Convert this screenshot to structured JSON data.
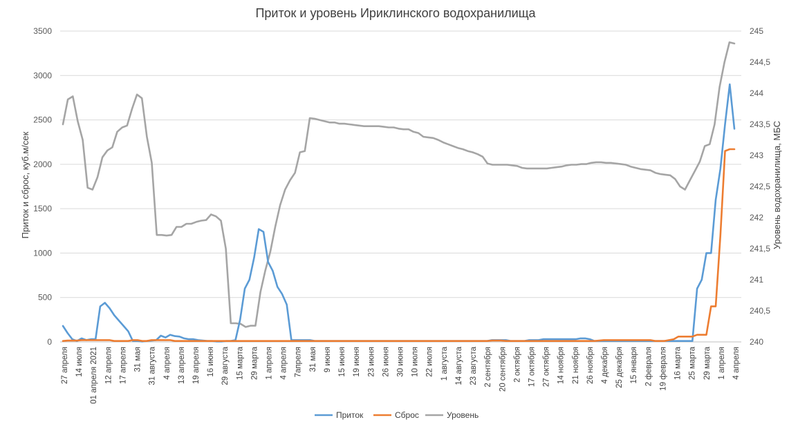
{
  "chart_data": {
    "type": "line",
    "title": "Приток и уровень Ириклинского водохранилища",
    "ylabel_left": "Приток и сброс, куб.м/сек",
    "ylabel_right": "Уровень водохранилища, МБС",
    "ylim_left": [
      0,
      3500
    ],
    "ylim_right": [
      240,
      245
    ],
    "yticks_left": [
      "0",
      "500",
      "1000",
      "1500",
      "2000",
      "2500",
      "3000",
      "3500"
    ],
    "yticks_right": [
      "240",
      "240,5",
      "241",
      "241,5",
      "242",
      "242,5",
      "243",
      "243,5",
      "244",
      "244,5",
      "245"
    ],
    "grid": "horizontal",
    "legend_position": "bottom",
    "x_labels": [
      "27 апреля",
      "14 июля",
      "01 апреля 2021",
      "12 апреля",
      "17 апреля",
      "31 мая",
      "31 августа",
      "4 апреля",
      "13 апреля",
      "19 апреля",
      "16 июня",
      "29 августа",
      "15 марта",
      "29 марта",
      "1 апреля",
      "4 апреля",
      "7апреля",
      "31 мая",
      "9 июня",
      "15 июня",
      "19 июня",
      "23 июня",
      "26 июня",
      "30 июня",
      "10 июля",
      "22 июля",
      "1 августа",
      "14 августа",
      "23 августа",
      "2 сентября",
      "20 сентября",
      "2 октября",
      "17 октября",
      "27 октября",
      "14 ноября",
      "21 ноября",
      "26 ноября",
      "4 декабря",
      "25 декабря",
      "15 января",
      "2 февраля",
      "19 февраля",
      "16 марта",
      "25 марта",
      "29 марта",
      "1 апреля",
      "4 апреля"
    ],
    "series": [
      {
        "name": "Приток",
        "color": "#5b9bd5",
        "axis": "left",
        "values": [
          180,
          100,
          30,
          10,
          40,
          20,
          30,
          30,
          400,
          440,
          380,
          300,
          240,
          180,
          120,
          10,
          10,
          5,
          10,
          15,
          20,
          70,
          50,
          80,
          65,
          60,
          40,
          30,
          30,
          20,
          15,
          10,
          10,
          5,
          5,
          10,
          10,
          20,
          250,
          600,
          700,
          950,
          1270,
          1240,
          900,
          800,
          620,
          540,
          420,
          20,
          20,
          20,
          20,
          20,
          10,
          10,
          10,
          10,
          10,
          10,
          10,
          10,
          10,
          10,
          10,
          10,
          10,
          10,
          10,
          10,
          10,
          10,
          10,
          10,
          10,
          10,
          10,
          10,
          10,
          10,
          10,
          10,
          10,
          10,
          10,
          10,
          10,
          10,
          10,
          10,
          10,
          10,
          20,
          20,
          20,
          20,
          10,
          10,
          10,
          10,
          20,
          20,
          20,
          30,
          30,
          30,
          30,
          30,
          30,
          30,
          30,
          40,
          40,
          30,
          10,
          10,
          10,
          10,
          10,
          10,
          10,
          10,
          10,
          10,
          10,
          10,
          10,
          10,
          10,
          10,
          10,
          10,
          10,
          10,
          10,
          10,
          600,
          700,
          1000,
          1000,
          1600,
          1950,
          2450,
          2900,
          2400
        ]
      },
      {
        "name": "Сброс",
        "color": "#ed7d31",
        "axis": "left",
        "values": [
          10,
          15,
          15,
          15,
          20,
          20,
          20,
          20,
          20,
          20,
          20,
          10,
          10,
          10,
          10,
          20,
          20,
          10,
          10,
          20,
          20,
          20,
          20,
          20,
          10,
          10,
          10,
          10,
          10,
          10,
          10,
          10,
          10,
          10,
          10,
          10,
          10,
          10,
          10,
          10,
          10,
          10,
          10,
          10,
          10,
          10,
          10,
          10,
          10,
          10,
          10,
          10,
          10,
          10,
          10,
          10,
          10,
          10,
          10,
          10,
          10,
          10,
          10,
          10,
          10,
          10,
          10,
          10,
          10,
          10,
          10,
          10,
          10,
          10,
          10,
          10,
          10,
          10,
          10,
          10,
          10,
          10,
          10,
          10,
          10,
          10,
          10,
          10,
          10,
          10,
          10,
          10,
          15,
          15,
          15,
          10,
          10,
          10,
          10,
          10,
          10,
          10,
          10,
          10,
          10,
          10,
          10,
          10,
          10,
          10,
          10,
          10,
          10,
          10,
          10,
          15,
          20,
          20,
          20,
          20,
          20,
          20,
          20,
          20,
          20,
          20,
          20,
          10,
          10,
          10,
          20,
          30,
          60,
          60,
          60,
          60,
          80,
          80,
          80,
          400,
          400,
          1200,
          2150,
          2170,
          2170
        ]
      },
      {
        "name": "Уровень",
        "color": "#a5a5a5",
        "axis": "right",
        "values": [
          243.5,
          243.9,
          243.95,
          243.55,
          243.25,
          242.48,
          242.45,
          242.65,
          242.97,
          243.08,
          243.13,
          243.38,
          243.45,
          243.48,
          243.75,
          243.98,
          243.92,
          243.3,
          242.88,
          241.72,
          241.72,
          241.71,
          241.72,
          241.85,
          241.85,
          241.9,
          241.9,
          241.93,
          241.95,
          241.96,
          242.05,
          242.02,
          241.95,
          241.5,
          240.3,
          240.3,
          240.29,
          240.24,
          240.26,
          240.26,
          240.8,
          241.15,
          241.45,
          241.85,
          242.2,
          242.45,
          242.6,
          242.72,
          243.05,
          243.07,
          243.6,
          243.59,
          243.57,
          243.55,
          243.53,
          243.53,
          243.51,
          243.51,
          243.5,
          243.49,
          243.48,
          243.47,
          243.47,
          243.47,
          243.47,
          243.46,
          243.45,
          243.45,
          243.43,
          243.42,
          243.42,
          243.38,
          243.36,
          243.3,
          243.29,
          243.28,
          243.25,
          243.21,
          243.18,
          243.15,
          243.12,
          243.1,
          243.07,
          243.05,
          243.02,
          242.98,
          242.87,
          242.85,
          242.85,
          242.85,
          242.85,
          242.84,
          242.83,
          242.8,
          242.79,
          242.79,
          242.79,
          242.79,
          242.79,
          242.8,
          242.81,
          242.82,
          242.84,
          242.85,
          242.85,
          242.86,
          242.86,
          242.88,
          242.89,
          242.89,
          242.88,
          242.88,
          242.87,
          242.86,
          242.85,
          242.82,
          242.8,
          242.78,
          242.77,
          242.76,
          242.72,
          242.7,
          242.69,
          242.68,
          242.62,
          242.5,
          242.45,
          242.6,
          242.75,
          242.9,
          243.15,
          243.18,
          243.5,
          244.1,
          244.5,
          244.82,
          244.8
        ]
      }
    ]
  }
}
